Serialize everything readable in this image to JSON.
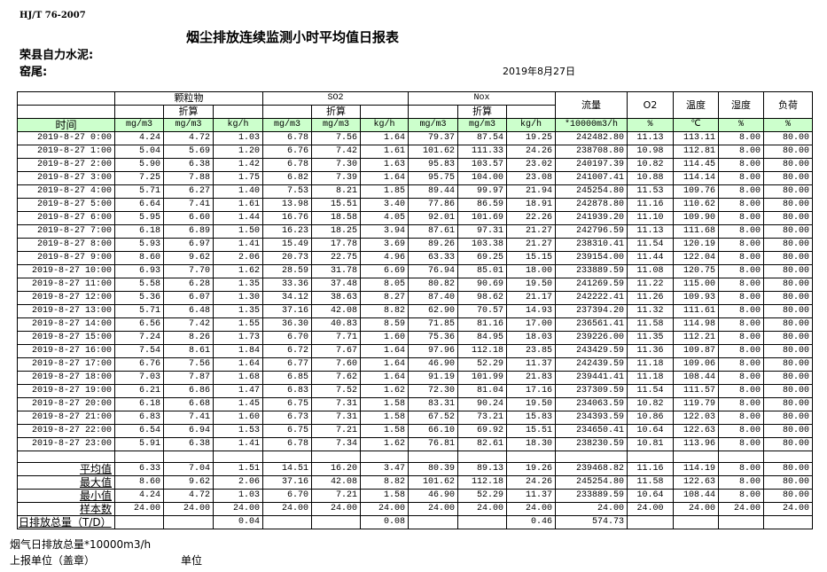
{
  "standard": "HJ/T  76-2007",
  "title": "烟尘排放连续监测小时平均值日报表",
  "company": "荣县自力水泥:",
  "kiln": "窑尾:",
  "date": "2019年8月27日",
  "header": {
    "groups": [
      "颗粒物",
      "SO2",
      "Nox"
    ],
    "converted": "折算",
    "flow": "流量",
    "o2": "O2",
    "temp": "温度",
    "humidity": "湿度",
    "load": "负荷",
    "units": [
      "时间",
      "mg/m3",
      "mg/m3",
      "kg/h",
      "mg/m3",
      "mg/m3",
      "kg/h",
      "mg/m3",
      "mg/m3",
      "kg/h",
      "*10000m3/h",
      "%",
      "℃",
      "%",
      "%"
    ]
  },
  "rows": [
    [
      "2019-8-27 0:00",
      "4.24",
      "4.72",
      "1.03",
      "6.78",
      "7.56",
      "1.64",
      "79.37",
      "87.54",
      "19.25",
      "242482.80",
      "11.13",
      "113.11",
      "8.00",
      "80.00"
    ],
    [
      "2019-8-27 1:00",
      "5.04",
      "5.69",
      "1.20",
      "6.76",
      "7.42",
      "1.61",
      "101.62",
      "111.33",
      "24.26",
      "238708.80",
      "10.98",
      "112.81",
      "8.00",
      "80.00"
    ],
    [
      "2019-8-27 2:00",
      "5.90",
      "6.38",
      "1.42",
      "6.78",
      "7.30",
      "1.63",
      "95.83",
      "103.57",
      "23.02",
      "240197.39",
      "10.82",
      "114.45",
      "8.00",
      "80.00"
    ],
    [
      "2019-8-27 3:00",
      "7.25",
      "7.88",
      "1.75",
      "6.82",
      "7.39",
      "1.64",
      "95.75",
      "104.00",
      "23.08",
      "241007.41",
      "10.88",
      "114.14",
      "8.00",
      "80.00"
    ],
    [
      "2019-8-27 4:00",
      "5.71",
      "6.27",
      "1.40",
      "7.53",
      "8.21",
      "1.85",
      "89.44",
      "99.97",
      "21.94",
      "245254.80",
      "11.53",
      "109.76",
      "8.00",
      "80.00"
    ],
    [
      "2019-8-27 5:00",
      "6.64",
      "7.41",
      "1.61",
      "13.98",
      "15.51",
      "3.40",
      "77.86",
      "86.59",
      "18.91",
      "242878.80",
      "11.16",
      "110.62",
      "8.00",
      "80.00"
    ],
    [
      "2019-8-27 6:00",
      "5.95",
      "6.60",
      "1.44",
      "16.76",
      "18.58",
      "4.05",
      "92.01",
      "101.69",
      "22.26",
      "241939.20",
      "11.10",
      "109.90",
      "8.00",
      "80.00"
    ],
    [
      "2019-8-27 7:00",
      "6.18",
      "6.89",
      "1.50",
      "16.23",
      "18.25",
      "3.94",
      "87.61",
      "97.31",
      "21.27",
      "242796.59",
      "11.13",
      "111.68",
      "8.00",
      "80.00"
    ],
    [
      "2019-8-27 8:00",
      "5.93",
      "6.97",
      "1.41",
      "15.49",
      "17.78",
      "3.69",
      "89.26",
      "103.38",
      "21.27",
      "238310.41",
      "11.54",
      "120.19",
      "8.00",
      "80.00"
    ],
    [
      "2019-8-27 9:00",
      "8.60",
      "9.62",
      "2.06",
      "20.73",
      "22.75",
      "4.96",
      "63.33",
      "69.25",
      "15.15",
      "239154.00",
      "11.44",
      "122.04",
      "8.00",
      "80.00"
    ],
    [
      "2019-8-27 10:00",
      "6.93",
      "7.70",
      "1.62",
      "28.59",
      "31.78",
      "6.69",
      "76.94",
      "85.01",
      "18.00",
      "233889.59",
      "11.08",
      "120.75",
      "8.00",
      "80.00"
    ],
    [
      "2019-8-27 11:00",
      "5.58",
      "6.28",
      "1.35",
      "33.36",
      "37.48",
      "8.05",
      "80.82",
      "90.69",
      "19.50",
      "241269.59",
      "11.22",
      "115.00",
      "8.00",
      "80.00"
    ],
    [
      "2019-8-27 12:00",
      "5.36",
      "6.07",
      "1.30",
      "34.12",
      "38.63",
      "8.27",
      "87.40",
      "98.62",
      "21.17",
      "242222.41",
      "11.26",
      "109.93",
      "8.00",
      "80.00"
    ],
    [
      "2019-8-27 13:00",
      "5.71",
      "6.48",
      "1.35",
      "37.16",
      "42.08",
      "8.82",
      "62.90",
      "70.57",
      "14.93",
      "237394.20",
      "11.32",
      "111.61",
      "8.00",
      "80.00"
    ],
    [
      "2019-8-27 14:00",
      "6.56",
      "7.42",
      "1.55",
      "36.30",
      "40.83",
      "8.59",
      "71.85",
      "81.16",
      "17.00",
      "236561.41",
      "11.58",
      "114.98",
      "8.00",
      "80.00"
    ],
    [
      "2019-8-27 15:00",
      "7.24",
      "8.26",
      "1.73",
      "6.70",
      "7.71",
      "1.60",
      "75.36",
      "84.95",
      "18.03",
      "239226.00",
      "11.35",
      "112.21",
      "8.00",
      "80.00"
    ],
    [
      "2019-8-27 16:00",
      "7.54",
      "8.61",
      "1.84",
      "6.72",
      "7.67",
      "1.64",
      "97.96",
      "112.18",
      "23.85",
      "243429.59",
      "11.36",
      "109.87",
      "8.00",
      "80.00"
    ],
    [
      "2019-8-27 17:00",
      "6.76",
      "7.56",
      "1.64",
      "6.77",
      "7.60",
      "1.64",
      "46.90",
      "52.29",
      "11.37",
      "242439.59",
      "11.18",
      "109.06",
      "8.00",
      "80.00"
    ],
    [
      "2019-8-27 18:00",
      "7.03",
      "7.87",
      "1.68",
      "6.85",
      "7.62",
      "1.64",
      "91.19",
      "101.99",
      "21.83",
      "239441.41",
      "11.18",
      "108.44",
      "8.00",
      "80.00"
    ],
    [
      "2019-8-27 19:00",
      "6.21",
      "6.86",
      "1.47",
      "6.83",
      "7.52",
      "1.62",
      "72.30",
      "81.04",
      "17.16",
      "237309.59",
      "11.54",
      "111.57",
      "8.00",
      "80.00"
    ],
    [
      "2019-8-27 20:00",
      "6.18",
      "6.68",
      "1.45",
      "6.75",
      "7.31",
      "1.58",
      "83.31",
      "90.24",
      "19.50",
      "234063.59",
      "10.82",
      "119.79",
      "8.00",
      "80.00"
    ],
    [
      "2019-8-27 21:00",
      "6.83",
      "7.41",
      "1.60",
      "6.73",
      "7.31",
      "1.58",
      "67.52",
      "73.21",
      "15.83",
      "234393.59",
      "10.86",
      "122.03",
      "8.00",
      "80.00"
    ],
    [
      "2019-8-27 22:00",
      "6.54",
      "6.94",
      "1.53",
      "6.75",
      "7.21",
      "1.58",
      "66.10",
      "69.92",
      "15.51",
      "234650.41",
      "10.64",
      "122.63",
      "8.00",
      "80.00"
    ],
    [
      "2019-8-27 23:00",
      "5.91",
      "6.38",
      "1.41",
      "6.78",
      "7.34",
      "1.62",
      "76.81",
      "82.61",
      "18.30",
      "238230.59",
      "10.81",
      "113.96",
      "8.00",
      "80.00"
    ]
  ],
  "summary": [
    [
      "平均值",
      "6.33",
      "7.04",
      "1.51",
      "14.51",
      "16.20",
      "3.47",
      "80.39",
      "89.13",
      "19.26",
      "239468.82",
      "11.16",
      "114.19",
      "8.00",
      "80.00"
    ],
    [
      "最大值",
      "8.60",
      "9.62",
      "2.06",
      "37.16",
      "42.08",
      "8.82",
      "101.62",
      "112.18",
      "24.26",
      "245254.80",
      "11.58",
      "122.63",
      "8.00",
      "80.00"
    ],
    [
      "最小值",
      "4.24",
      "4.72",
      "1.03",
      "6.70",
      "7.21",
      "1.58",
      "46.90",
      "52.29",
      "11.37",
      "233889.59",
      "10.64",
      "108.44",
      "8.00",
      "80.00"
    ],
    [
      "样本数",
      "24.00",
      "24.00",
      "24.00",
      "24.00",
      "24.00",
      "24.00",
      "24.00",
      "24.00",
      "24.00",
      "24.00",
      "24.00",
      "24.00",
      "24.00",
      "24.00"
    ]
  ],
  "daily_total": [
    "日排放总量（T/D）",
    "",
    "",
    "0.04",
    "",
    "",
    "0.08",
    "",
    "",
    "0.46",
    "574.73",
    "",
    "",
    "",
    ""
  ],
  "footer": {
    "flue_gas_total": "烟气日排放总量*10000m3/h",
    "reporting_unit": "上报单位（盖章）",
    "unit": "单位"
  },
  "colors": {
    "header_green": "#ccffcc",
    "grid": "#000000"
  }
}
